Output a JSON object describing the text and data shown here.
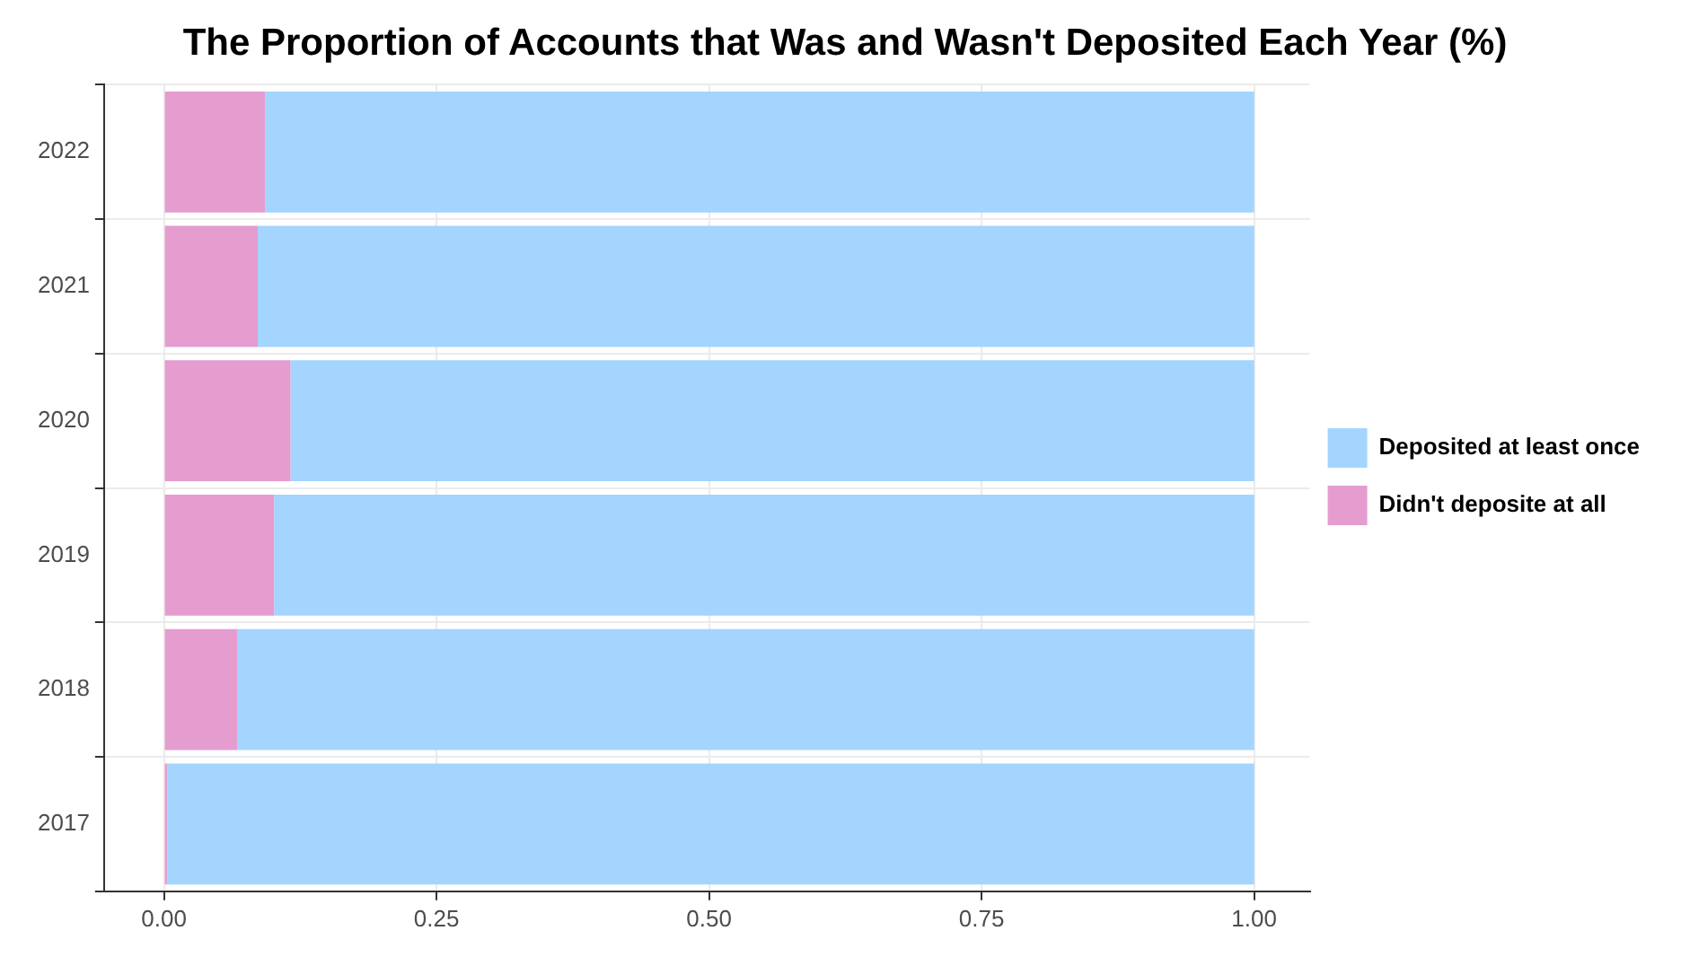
{
  "chart_data": {
    "type": "bar",
    "orientation": "horizontal",
    "stacked": true,
    "title": "The Proportion of Accounts that Was and Wasn't Deposited Each Year (%)",
    "categories": [
      "2022",
      "2021",
      "2020",
      "2019",
      "2018",
      "2017"
    ],
    "series": [
      {
        "name": "Didn't deposite at all",
        "color": "#e59ccf",
        "values": [
          0.093,
          0.086,
          0.116,
          0.101,
          0.067,
          0.003
        ]
      },
      {
        "name": "Deposited at least once",
        "color": "#a3d5ff",
        "values": [
          0.907,
          0.914,
          0.884,
          0.899,
          0.933,
          0.997
        ]
      }
    ],
    "xlim": [
      -0.055,
      1.051
    ],
    "xticks": [
      {
        "value": 0,
        "label": "0.00"
      },
      {
        "value": 0.25,
        "label": "0.25"
      },
      {
        "value": 0.5,
        "label": "0.50"
      },
      {
        "value": 0.75,
        "label": "0.75"
      },
      {
        "value": 1,
        "label": "1.00"
      }
    ],
    "grid": true,
    "legend": "right"
  }
}
